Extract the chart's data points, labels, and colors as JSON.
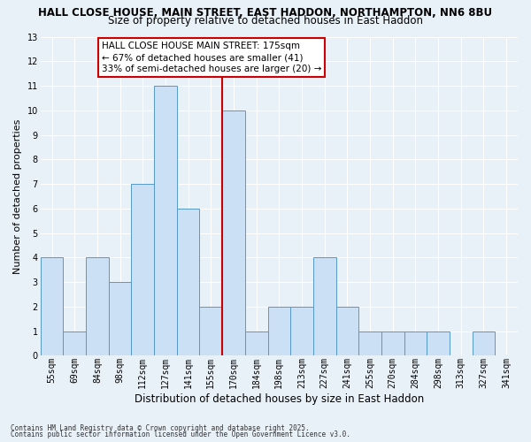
{
  "title1": "HALL CLOSE HOUSE, MAIN STREET, EAST HADDON, NORTHAMPTON, NN6 8BU",
  "title2": "Size of property relative to detached houses in East Haddon",
  "xlabel": "Distribution of detached houses by size in East Haddon",
  "ylabel": "Number of detached properties",
  "categories": [
    "55sqm",
    "69sqm",
    "84sqm",
    "98sqm",
    "112sqm",
    "127sqm",
    "141sqm",
    "155sqm",
    "170sqm",
    "184sqm",
    "198sqm",
    "213sqm",
    "227sqm",
    "241sqm",
    "255sqm",
    "270sqm",
    "284sqm",
    "298sqm",
    "313sqm",
    "327sqm",
    "341sqm"
  ],
  "values": [
    4,
    1,
    4,
    3,
    7,
    11,
    6,
    2,
    10,
    1,
    2,
    2,
    4,
    2,
    1,
    1,
    1,
    1,
    0,
    1,
    0
  ],
  "bar_color": "#cce0f5",
  "bar_edge_color": "#5599cc",
  "vline_color": "#cc0000",
  "vline_index": 8,
  "annotation_title": "HALL CLOSE HOUSE MAIN STREET: 175sqm",
  "annotation_line1": "← 67% of detached houses are smaller (41)",
  "annotation_line2": "33% of semi-detached houses are larger (20) →",
  "annotation_box_color": "#cc0000",
  "ylim": [
    0,
    13
  ],
  "yticks": [
    0,
    1,
    2,
    3,
    4,
    5,
    6,
    7,
    8,
    9,
    10,
    11,
    12,
    13
  ],
  "footnote1": "Contains HM Land Registry data © Crown copyright and database right 2025.",
  "footnote2": "Contains public sector information licensed under the Open Government Licence v3.0.",
  "bg_color": "#e8f0f8",
  "grid_color": "#ffffff",
  "title1_fontsize": 8.5,
  "title2_fontsize": 8.5,
  "xlabel_fontsize": 8.5,
  "ylabel_fontsize": 8,
  "tick_fontsize": 7,
  "annot_fontsize": 7.5,
  "footnote_fontsize": 5.5
}
